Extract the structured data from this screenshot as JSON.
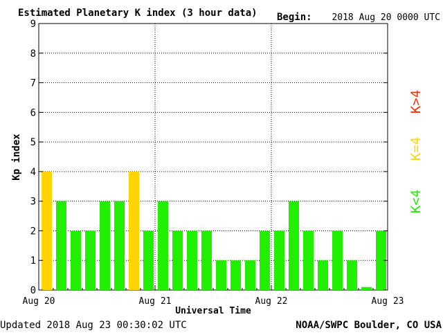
{
  "header": {
    "title": "Estimated Planetary K index (3 hour data)",
    "begin_label": "Begin:",
    "begin_value": "2018 Aug 20 0000 UTC"
  },
  "footer": {
    "updated": "Updated 2018 Aug 23 00:30:02 UTC",
    "source": "NOAA/SWPC Boulder, CO USA"
  },
  "legend": [
    {
      "label": "K>4",
      "color": "#ff2a00"
    },
    {
      "label": "K=4",
      "color": "#ffd400"
    },
    {
      "label": "K<4",
      "color": "#22ee00"
    }
  ],
  "chart_data": {
    "type": "bar",
    "title": "Estimated Planetary K index (3 hour data)",
    "xlabel": "Universal Time",
    "ylabel": "Kp index",
    "ylim": [
      0,
      9
    ],
    "yticks": [
      0,
      1,
      2,
      3,
      4,
      5,
      6,
      7,
      8,
      9
    ],
    "xtick_labels": [
      "Aug 20",
      "Aug 21",
      "Aug 22",
      "Aug 23"
    ],
    "grid": true,
    "legend_position": "right",
    "values": [
      4,
      3,
      2,
      2,
      3,
      3,
      4,
      2,
      3,
      2,
      2,
      2,
      1,
      1,
      1,
      2,
      2,
      3,
      2,
      1,
      2,
      1,
      0.1,
      2
    ],
    "colors": {
      "below4": "#22ee00",
      "equal4": "#ffd400",
      "above4": "#ff2a00"
    }
  }
}
